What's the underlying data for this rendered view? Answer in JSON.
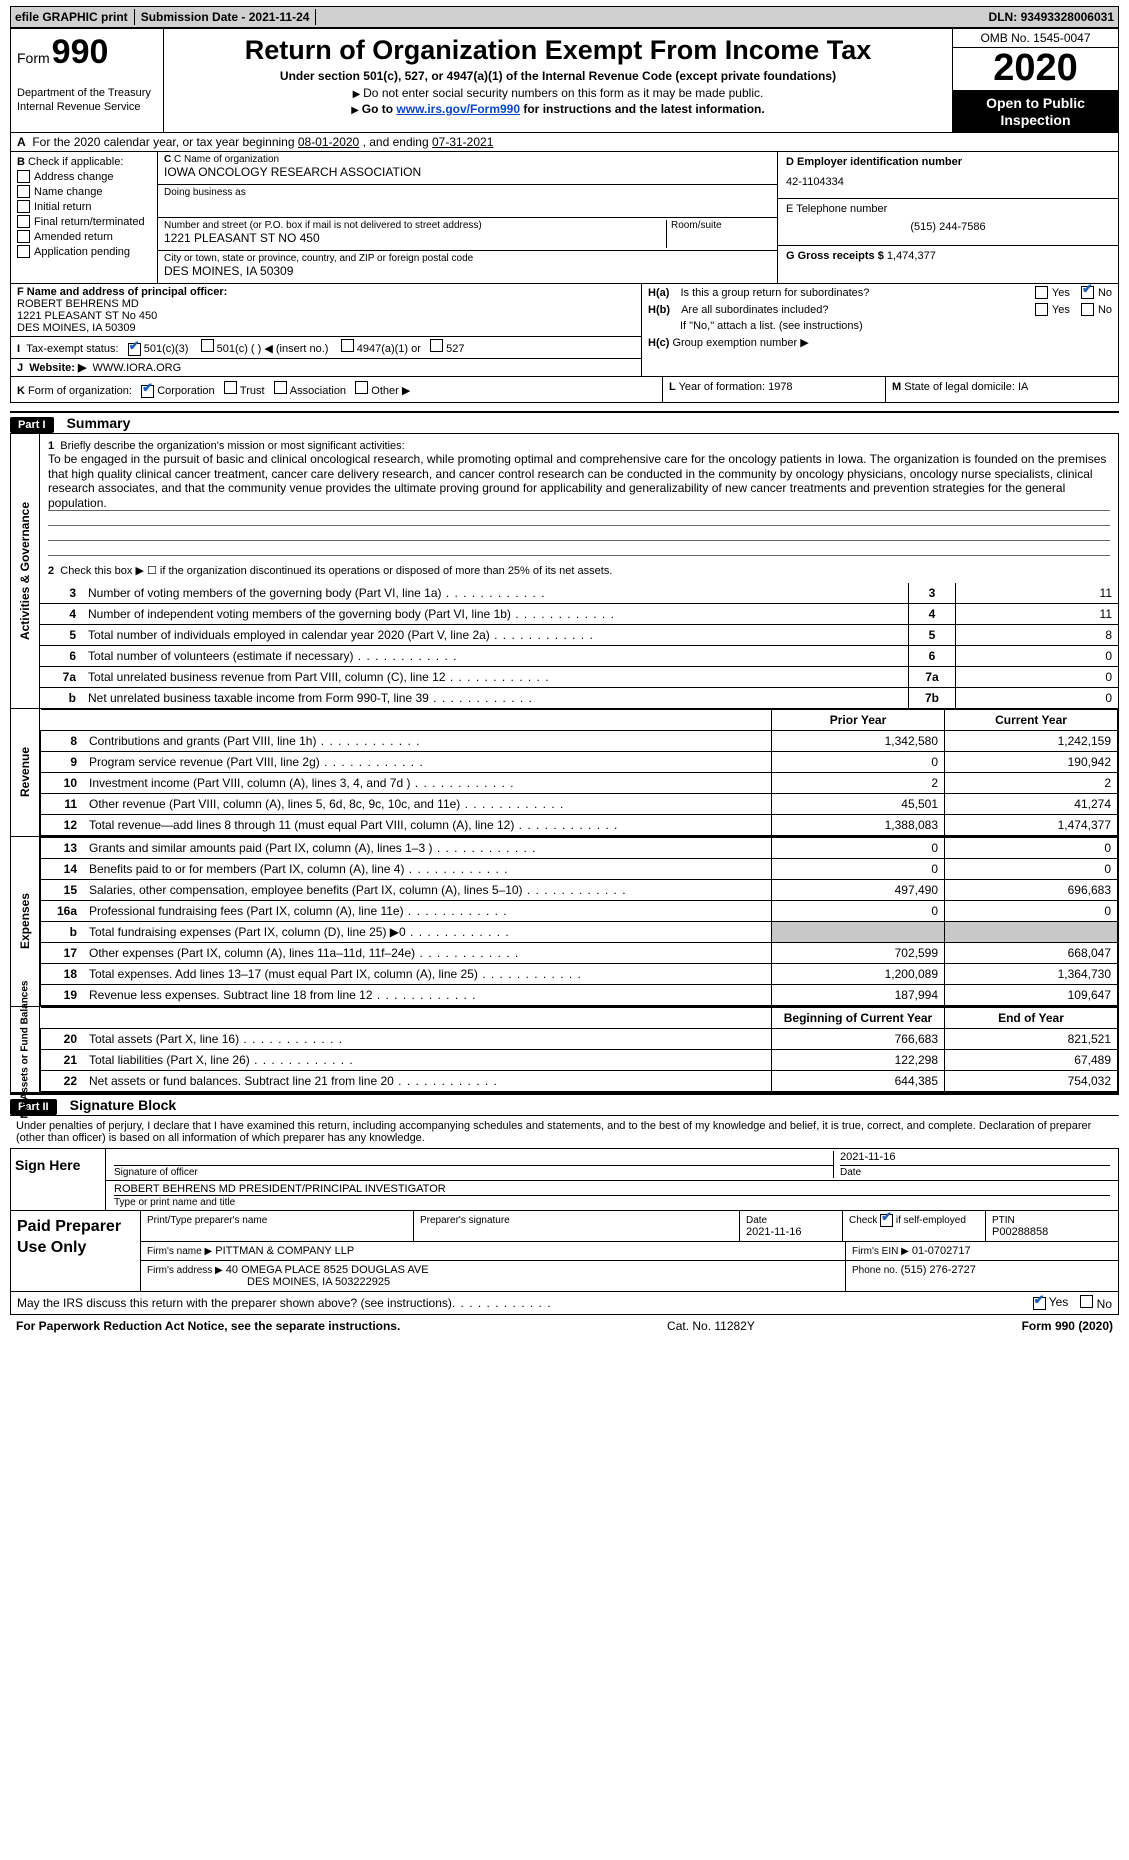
{
  "top_bar": {
    "efile": "efile GRAPHIC print",
    "submission_label": "Submission Date -",
    "submission_date": "2021-11-24",
    "dln_label": "DLN:",
    "dln": "93493328006031"
  },
  "header": {
    "form_word": "Form",
    "form_num": "990",
    "title": "Return of Organization Exempt From Income Tax",
    "subtitle": "Under section 501(c), 527, or 4947(a)(1) of the Internal Revenue Code (except private foundations)",
    "notice1": "Do not enter social security numbers on this form as it may be made public.",
    "notice2_prefix": "Go to ",
    "notice2_link": "www.irs.gov/Form990",
    "notice2_suffix": " for instructions and the latest information.",
    "dept1": "Department of the Treasury",
    "dept2": "Internal Revenue Service",
    "omb": "OMB No. 1545-0047",
    "year": "2020",
    "open1": "Open to Public",
    "open2": "Inspection"
  },
  "tax_year": {
    "prefix": "For the 2020 calendar year, or tax year beginning ",
    "begin": "08-01-2020",
    "mid": "   , and ending ",
    "end": "07-31-2021"
  },
  "sectionB": {
    "heading": "Check if applicable:",
    "items": [
      "Address change",
      "Name change",
      "Initial return",
      "Final return/terminated",
      "Amended return",
      "Application pending"
    ]
  },
  "sectionC": {
    "name_label": "C Name of organization",
    "name": "IOWA ONCOLOGY RESEARCH ASSOCIATION",
    "dba_label": "Doing business as",
    "street_label": "Number and street (or P.O. box if mail is not delivered to street address)",
    "street": "1221 PLEASANT ST No 450",
    "room_label": "Room/suite",
    "city_label": "City or town, state or province, country, and ZIP or foreign postal code",
    "city": "DES MOINES, IA  50309"
  },
  "sectionD": {
    "label": "D Employer identification number",
    "ein": "42-1104334"
  },
  "sectionE": {
    "label": "E Telephone number",
    "phone": "(515) 244-7586"
  },
  "sectionG": {
    "label": "G Gross receipts $",
    "amount": "1,474,377"
  },
  "sectionF": {
    "label": "F  Name and address of principal officer:",
    "name": "ROBERT BEHRENS MD",
    "line1": "1221 PLEASANT ST No 450",
    "line2": "DES MOINES, IA  50309"
  },
  "sectionH": {
    "ha_label": "Is this a group return for subordinates?",
    "hb_label": "Are all subordinates included?",
    "hb_note": "If \"No,\" attach a list. (see instructions)",
    "hc_label": "Group exemption number ▶",
    "yes": "Yes",
    "no": "No"
  },
  "sectionI": {
    "label": "Tax-exempt status:",
    "opt1": "501(c)(3)",
    "opt2": "501(c) (  ) ◀ (insert no.)",
    "opt3": "4947(a)(1) or",
    "opt4": "527"
  },
  "sectionJ": {
    "label": "Website: ▶",
    "value": "WWW.IORA.ORG"
  },
  "sectionK": {
    "label": "Form of organization:",
    "opts": [
      "Corporation",
      "Trust",
      "Association",
      "Other ▶"
    ]
  },
  "sectionL": {
    "label": "Year of formation:",
    "val": "1978"
  },
  "sectionM": {
    "label": "State of legal domicile:",
    "val": "IA"
  },
  "partI": {
    "header": "Part I",
    "title": "Summary",
    "side_activities": "Activities & Governance",
    "side_revenue": "Revenue",
    "side_expenses": "Expenses",
    "side_net": "Net Assets or Fund Balances",
    "line1_label": "Briefly describe the organization's mission or most significant activities:",
    "mission": "To be engaged in the pursuit of basic and clinical oncological research, while promoting optimal and comprehensive care for the oncology patients in Iowa. The organization is founded on the premises that high quality clinical cancer treatment, cancer care delivery research, and cancer control research can be conducted in the community by oncology physicians, oncology nurse specialists, clinical research associates, and that the community venue provides the ultimate proving ground for applicability and generalizability of new cancer treatments and prevention strategies for the general population.",
    "line2": "Check this box ▶ ☐  if the organization discontinued its operations or disposed of more than 25% of its net assets.",
    "rows_gov": [
      {
        "num": "3",
        "txt": "Number of voting members of the governing body (Part VI, line 1a)",
        "ref": "3",
        "val": "11"
      },
      {
        "num": "4",
        "txt": "Number of independent voting members of the governing body (Part VI, line 1b)",
        "ref": "4",
        "val": "11"
      },
      {
        "num": "5",
        "txt": "Total number of individuals employed in calendar year 2020 (Part V, line 2a)",
        "ref": "5",
        "val": "8"
      },
      {
        "num": "6",
        "txt": "Total number of volunteers (estimate if necessary)",
        "ref": "6",
        "val": "0"
      },
      {
        "num": "7a",
        "txt": "Total unrelated business revenue from Part VIII, column (C), line 12",
        "ref": "7a",
        "val": "0"
      },
      {
        "num": "b",
        "txt": "Net unrelated business taxable income from Form 990-T, line 39",
        "ref": "7b",
        "val": "0"
      }
    ],
    "col_py": "Prior Year",
    "col_cy": "Current Year",
    "rev_rows": [
      {
        "n": "8",
        "t": "Contributions and grants (Part VIII, line 1h)",
        "py": "1,342,580",
        "cy": "1,242,159"
      },
      {
        "n": "9",
        "t": "Program service revenue (Part VIII, line 2g)",
        "py": "0",
        "cy": "190,942"
      },
      {
        "n": "10",
        "t": "Investment income (Part VIII, column (A), lines 3, 4, and 7d )",
        "py": "2",
        "cy": "2"
      },
      {
        "n": "11",
        "t": "Other revenue (Part VIII, column (A), lines 5, 6d, 8c, 9c, 10c, and 11e)",
        "py": "45,501",
        "cy": "41,274"
      },
      {
        "n": "12",
        "t": "Total revenue—add lines 8 through 11 (must equal Part VIII, column (A), line 12)",
        "py": "1,388,083",
        "cy": "1,474,377"
      }
    ],
    "exp_rows": [
      {
        "n": "13",
        "t": "Grants and similar amounts paid (Part IX, column (A), lines 1–3 )",
        "py": "0",
        "cy": "0"
      },
      {
        "n": "14",
        "t": "Benefits paid to or for members (Part IX, column (A), line 4)",
        "py": "0",
        "cy": "0"
      },
      {
        "n": "15",
        "t": "Salaries, other compensation, employee benefits (Part IX, column (A), lines 5–10)",
        "py": "497,490",
        "cy": "696,683"
      },
      {
        "n": "16a",
        "t": "Professional fundraising fees (Part IX, column (A), line 11e)",
        "py": "0",
        "cy": "0"
      },
      {
        "n": "b",
        "t": "Total fundraising expenses (Part IX, column (D), line 25) ▶0",
        "py": "SHADE",
        "cy": "SHADE"
      },
      {
        "n": "17",
        "t": "Other expenses (Part IX, column (A), lines 11a–11d, 11f–24e)",
        "py": "702,599",
        "cy": "668,047"
      },
      {
        "n": "18",
        "t": "Total expenses. Add lines 13–17 (must equal Part IX, column (A), line 25)",
        "py": "1,200,089",
        "cy": "1,364,730"
      },
      {
        "n": "19",
        "t": "Revenue less expenses. Subtract line 18 from line 12",
        "py": "187,994",
        "cy": "109,647"
      }
    ],
    "col_boy": "Beginning of Current Year",
    "col_eoy": "End of Year",
    "net_rows": [
      {
        "n": "20",
        "t": "Total assets (Part X, line 16)",
        "py": "766,683",
        "cy": "821,521"
      },
      {
        "n": "21",
        "t": "Total liabilities (Part X, line 26)",
        "py": "122,298",
        "cy": "67,489"
      },
      {
        "n": "22",
        "t": "Net assets or fund balances. Subtract line 21 from line 20",
        "py": "644,385",
        "cy": "754,032"
      }
    ]
  },
  "partII": {
    "header": "Part II",
    "title": "Signature Block",
    "jurat": "Under penalties of perjury, I declare that I have examined this return, including accompanying schedules and statements, and to the best of my knowledge and belief, it is true, correct, and complete. Declaration of preparer (other than officer) is based on all information of which preparer has any knowledge.",
    "sign_here": "Sign Here",
    "sig_of_officer": "Signature of officer",
    "date_label": "Date",
    "sig_date": "2021-11-16",
    "officer_name": "ROBERT BEHRENS MD  PRESIDENT/PRINCIPAL INVESTIGATOR",
    "type_name": "Type or print name and title",
    "paid_prep": "Paid Preparer Use Only",
    "prep_name_label": "Print/Type preparer's name",
    "prep_sig_label": "Preparer's signature",
    "prep_date": "2021-11-16",
    "check_if": "Check          if self-employed",
    "ptin_label": "PTIN",
    "ptin": "P00288858",
    "firm_name_label": "Firm's name    ▶",
    "firm_name": "PITTMAN & COMPANY LLP",
    "firm_ein_label": "Firm's EIN ▶",
    "firm_ein": "01-0702717",
    "firm_addr_label": "Firm's address ▶",
    "firm_addr1": "40 OMEGA PLACE 8525 DOUGLAS AVE",
    "firm_addr2": "DES MOINES, IA  503222925",
    "firm_phone_label": "Phone no.",
    "firm_phone": "(515) 276-2727",
    "discuss": "May the IRS discuss this return with the preparer shown above? (see instructions)",
    "yes": "Yes",
    "no": "No"
  },
  "footer": {
    "left": "For Paperwork Reduction Act Notice, see the separate instructions.",
    "mid": "Cat. No. 11282Y",
    "right_a": "Form ",
    "right_b": "990",
    "right_c": " (2020)"
  }
}
